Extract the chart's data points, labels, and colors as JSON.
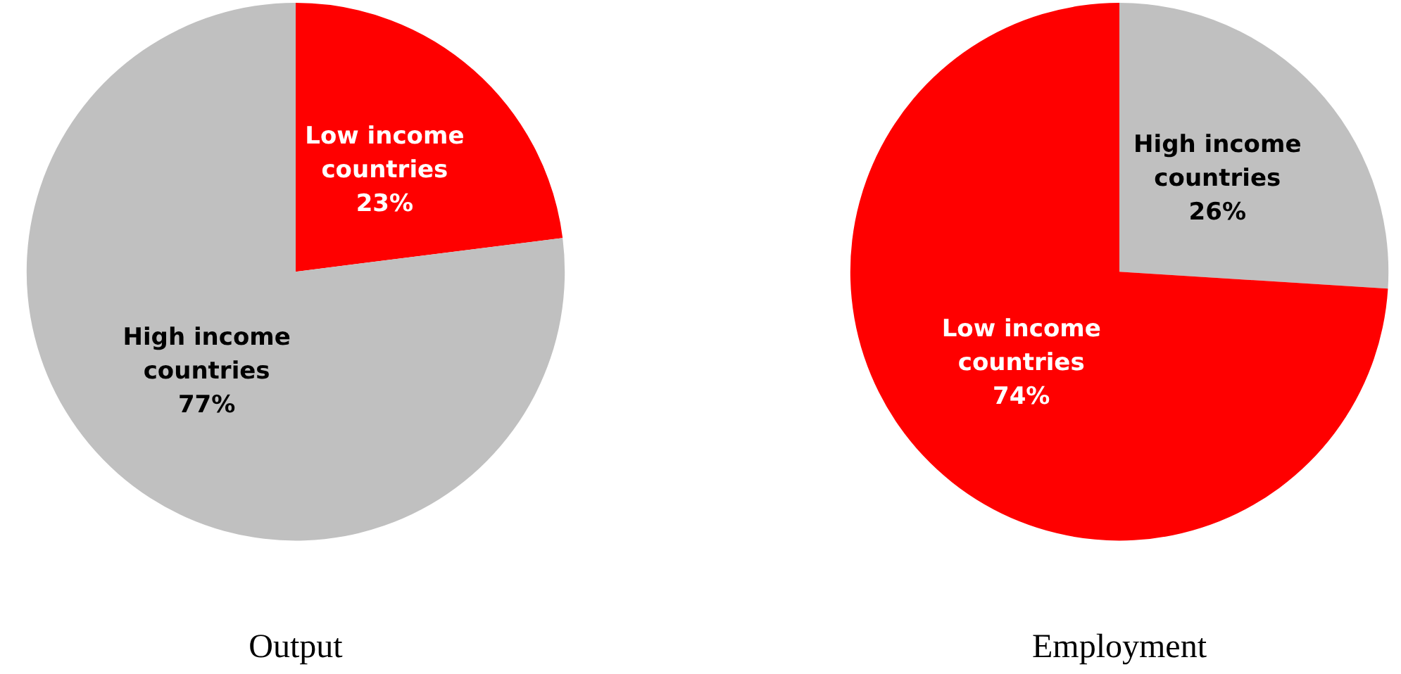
{
  "chart_data": [
    {
      "type": "pie",
      "title": "Output",
      "categories": [
        "Low income countries",
        "High income countries"
      ],
      "values": [
        23,
        77
      ],
      "colors": [
        "#ff0000",
        "#c0c0c0"
      ],
      "value_labels": [
        "23%",
        "77%"
      ]
    },
    {
      "type": "pie",
      "title": "Employment",
      "categories": [
        "High income countries",
        "Low income countries"
      ],
      "values": [
        26,
        74
      ],
      "colors": [
        "#c0c0c0",
        "#ff0000"
      ],
      "value_labels": [
        "26%",
        "74%"
      ]
    }
  ]
}
